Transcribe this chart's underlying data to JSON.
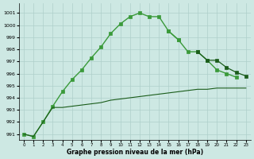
{
  "x": [
    0,
    1,
    2,
    3,
    4,
    5,
    6,
    7,
    8,
    9,
    10,
    11,
    12,
    13,
    14,
    15,
    16,
    17,
    18,
    19,
    20,
    21,
    22,
    23
  ],
  "line_main": [
    991.0,
    990.8,
    992.0,
    993.3,
    994.5,
    995.5,
    996.3,
    997.3,
    998.2,
    999.3,
    1000.1,
    1000.7,
    1001.0,
    1000.7,
    1000.7,
    999.5,
    998.8,
    null,
    null,
    null,
    null,
    null,
    null,
    null
  ],
  "line_mid": [
    null,
    null,
    null,
    null,
    null,
    null,
    null,
    null,
    null,
    null,
    null,
    null,
    null,
    null,
    null,
    999.5,
    998.8,
    997.8,
    997.8,
    997.1,
    996.3,
    996.0,
    995.7,
    null
  ],
  "line_flat_bottom": [
    991.0,
    990.8,
    992.0,
    993.2,
    993.2,
    993.3,
    993.4,
    993.5,
    993.6,
    993.8,
    993.9,
    994.0,
    994.1,
    994.2,
    994.3,
    994.4,
    994.5,
    994.6,
    994.7,
    994.7,
    994.8,
    994.8,
    994.8,
    994.8
  ],
  "line_upper_right": [
    null,
    null,
    null,
    null,
    null,
    null,
    null,
    null,
    null,
    null,
    null,
    null,
    null,
    null,
    null,
    null,
    null,
    null,
    997.8,
    997.1,
    997.1,
    996.5,
    996.1,
    995.8
  ],
  "bg_color": "#cde8e3",
  "grid_color": "#aecfca",
  "line_color_bright": "#3a9a3a",
  "line_color_dark": "#1a5c1a",
  "ylabel_values": [
    991,
    992,
    993,
    994,
    995,
    996,
    997,
    998,
    999,
    1000,
    1001
  ],
  "xlabel_values": [
    0,
    1,
    2,
    3,
    4,
    5,
    6,
    7,
    8,
    9,
    10,
    11,
    12,
    13,
    14,
    15,
    16,
    17,
    18,
    19,
    20,
    21,
    22,
    23
  ],
  "xlabel": "Graphe pression niveau de la mer (hPa)",
  "ylim": [
    990.5,
    1001.8
  ],
  "xlim": [
    -0.5,
    23.5
  ]
}
